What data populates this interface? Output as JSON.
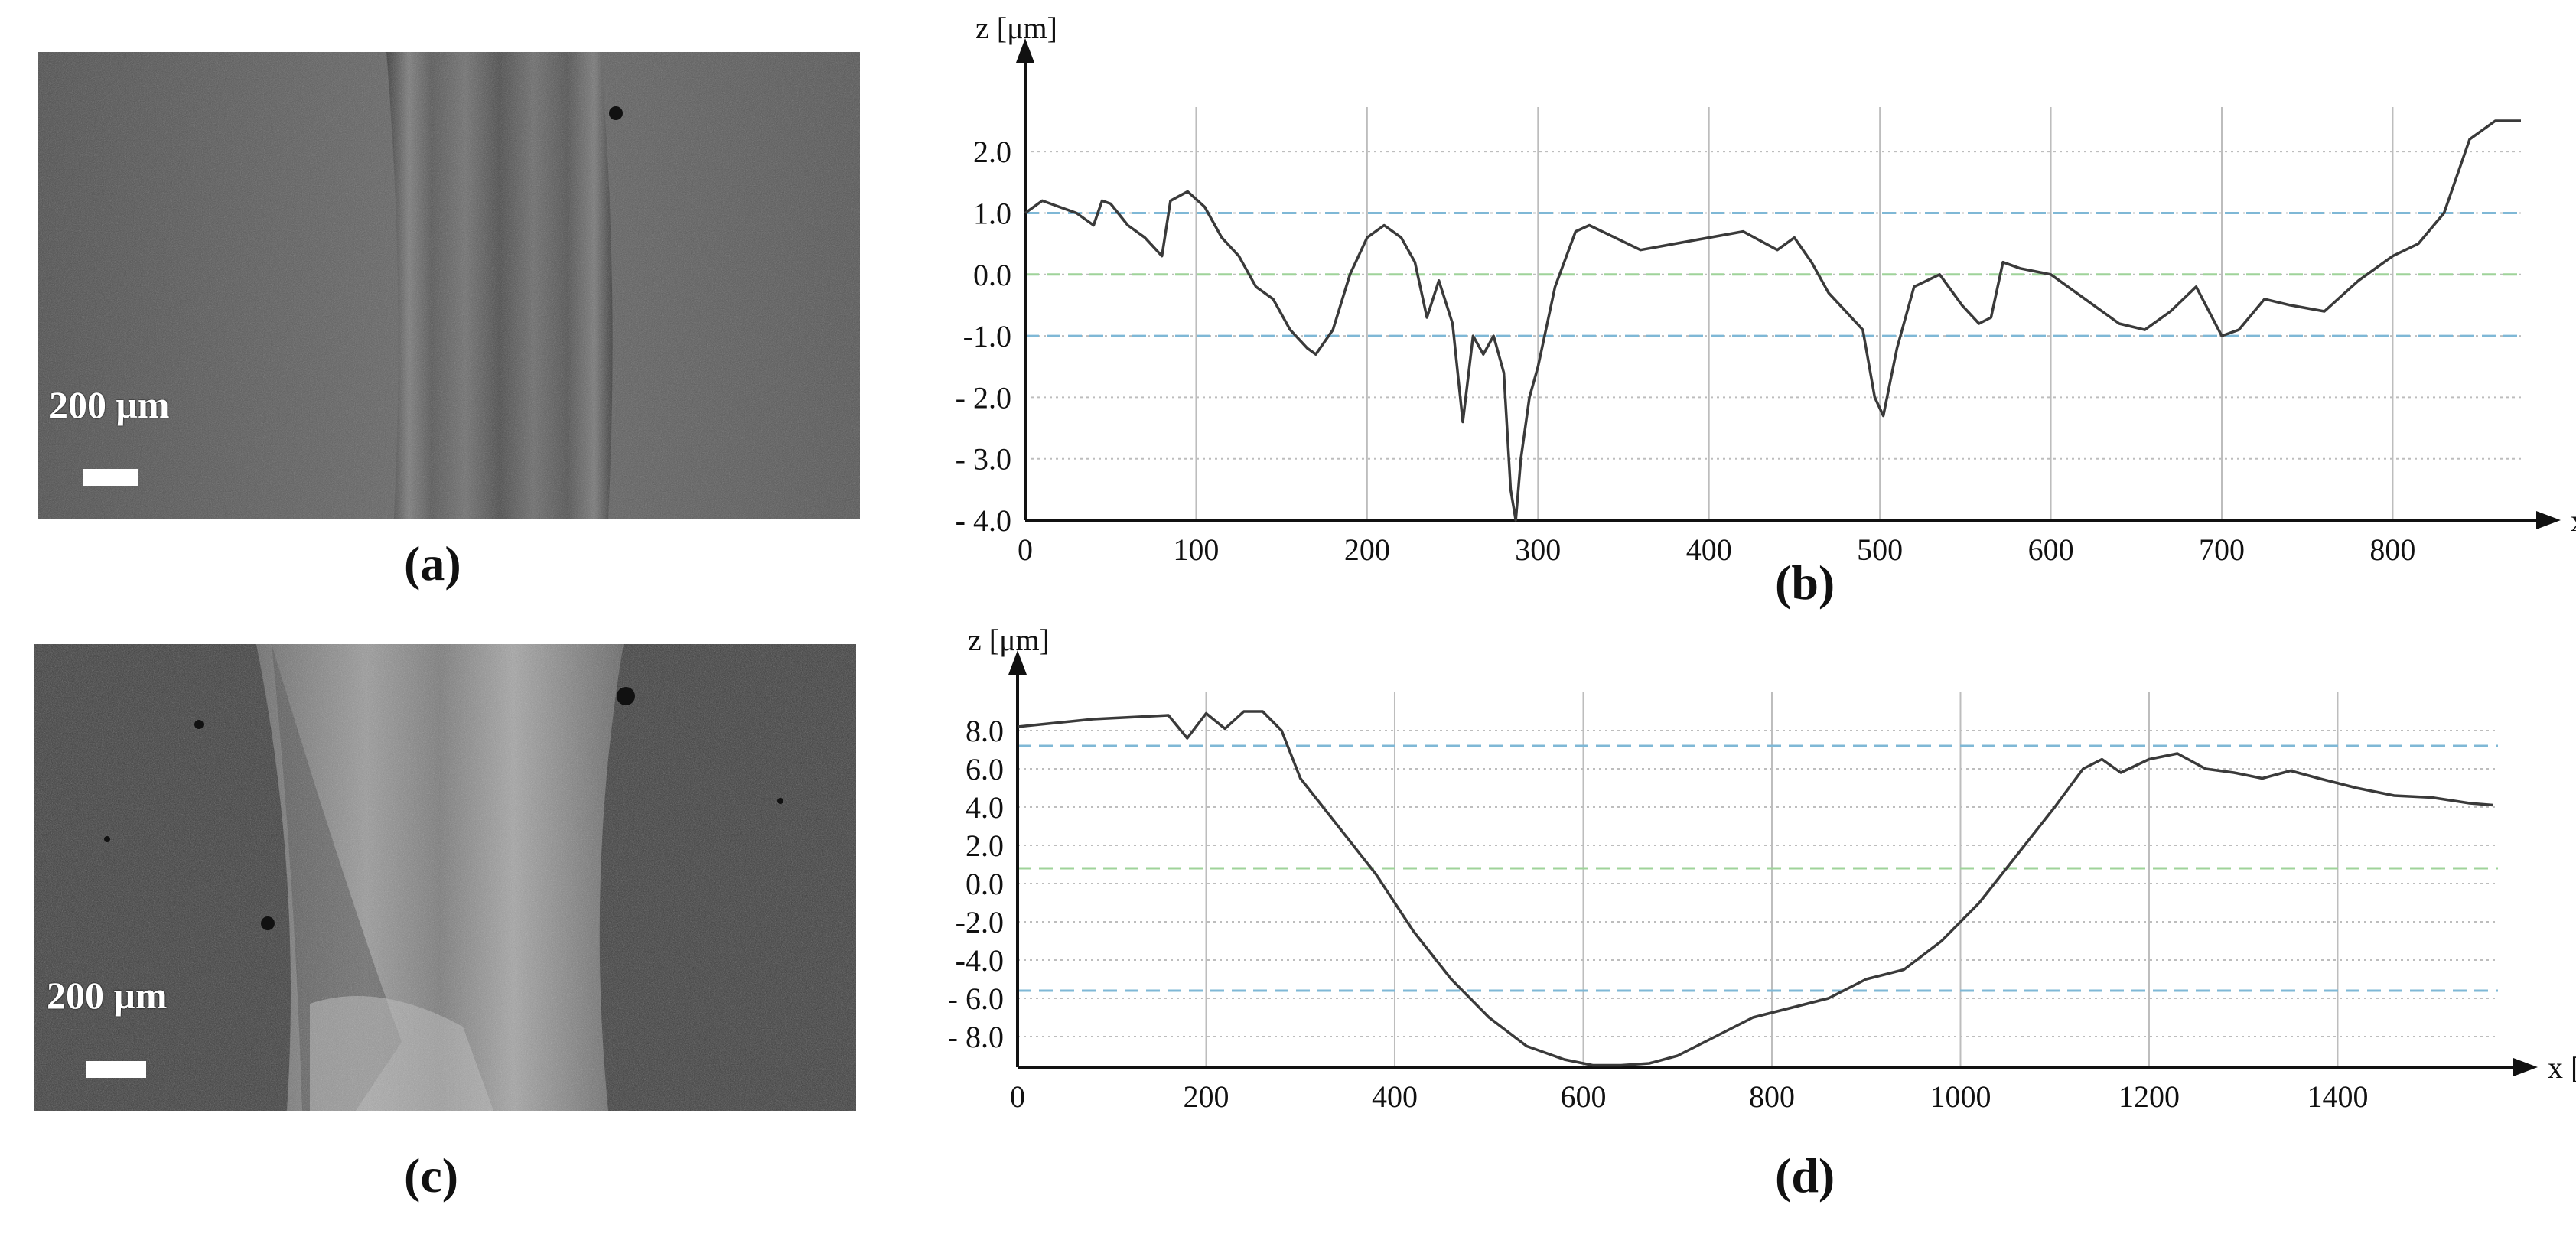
{
  "panels": {
    "a": {
      "label": "(a)",
      "scale_label": "200 μm"
    },
    "b": {
      "label": "(b)"
    },
    "c": {
      "label": "(c)",
      "scale_label": "200 μm"
    },
    "d": {
      "label": "(d)"
    }
  },
  "colors": {
    "profile": "#3a3a3a",
    "grid": "#bdbdbd",
    "limit_line": "#7fb8d6",
    "mean_line": "#9fd39a",
    "axis": "#111111"
  },
  "chart_data": [
    {
      "id": "b",
      "type": "line",
      "xlabel": "x [μm]",
      "ylabel": "z [μm]",
      "xlim": [
        0,
        875
      ],
      "ylim": [
        -4.0,
        2.6
      ],
      "xticks": [
        0,
        100,
        200,
        300,
        400,
        500,
        600,
        700,
        800
      ],
      "xtick_labels": [
        "0",
        "100",
        "200",
        "300",
        "400",
        "500",
        "600",
        "700",
        "800"
      ],
      "yticks": [
        2.0,
        1.0,
        0.0,
        -1.0,
        -2.0,
        -3.0,
        -4.0
      ],
      "ytick_labels": [
        "2.0",
        "1.0",
        "0.0",
        "-1.0",
        "- 2.0",
        "- 3.0",
        "- 4.0"
      ],
      "grid": true,
      "reference_lines": {
        "upper": 1.0,
        "mean": 0.0,
        "lower": -1.0
      },
      "x": [
        0,
        10,
        20,
        30,
        40,
        45,
        50,
        60,
        70,
        80,
        85,
        95,
        105,
        115,
        125,
        135,
        145,
        155,
        165,
        170,
        180,
        190,
        200,
        210,
        220,
        228,
        235,
        242,
        250,
        256,
        262,
        268,
        274,
        280,
        284,
        287,
        290,
        295,
        300,
        310,
        322,
        330,
        345,
        360,
        380,
        400,
        420,
        440,
        450,
        460,
        470,
        480,
        490,
        497,
        502,
        510,
        520,
        535,
        548,
        558,
        565,
        572,
        582,
        600,
        620,
        640,
        655,
        670,
        685,
        700,
        710,
        725,
        740,
        760,
        780,
        800,
        815,
        830,
        845,
        860,
        875
      ],
      "values": [
        1.0,
        1.2,
        1.1,
        1.0,
        0.8,
        1.2,
        1.15,
        0.8,
        0.6,
        0.3,
        1.2,
        1.35,
        1.1,
        0.6,
        0.3,
        -0.2,
        -0.4,
        -0.9,
        -1.2,
        -1.3,
        -0.9,
        0.0,
        0.6,
        0.8,
        0.6,
        0.2,
        -0.7,
        -0.1,
        -0.8,
        -2.4,
        -1.0,
        -1.3,
        -1.0,
        -1.6,
        -3.5,
        -4.0,
        -3.0,
        -2.0,
        -1.5,
        -0.2,
        0.7,
        0.8,
        0.6,
        0.4,
        0.5,
        0.6,
        0.7,
        0.4,
        0.6,
        0.2,
        -0.3,
        -0.6,
        -0.9,
        -2.0,
        -2.3,
        -1.2,
        -0.2,
        0.0,
        -0.5,
        -0.8,
        -0.7,
        0.2,
        0.1,
        0.0,
        -0.4,
        -0.8,
        -0.9,
        -0.6,
        -0.2,
        -1.0,
        -0.9,
        -0.4,
        -0.5,
        -0.6,
        -0.1,
        0.3,
        0.5,
        1.0,
        2.2,
        2.5,
        2.5
      ]
    },
    {
      "id": "d",
      "type": "line",
      "xlabel": "x [μm]",
      "ylabel": "z [μm]",
      "xlim": [
        0,
        1570
      ],
      "ylim": [
        -9.6,
        9.6
      ],
      "xticks": [
        0,
        200,
        400,
        600,
        800,
        1000,
        1200,
        1400
      ],
      "xtick_labels": [
        "0",
        "200",
        "400",
        "600",
        "800",
        "1000",
        "1200",
        "1400"
      ],
      "yticks": [
        8.0,
        6.0,
        4.0,
        2.0,
        0.0,
        -2.0,
        -4.0,
        -6.0,
        -8.0
      ],
      "ytick_labels": [
        "8.0",
        "6.0",
        "4.0",
        "2.0",
        "0.0",
        "-2.0",
        "-4.0",
        "- 6.0",
        "- 8.0"
      ],
      "grid": true,
      "reference_lines": {
        "upper": 7.2,
        "mean": 0.8,
        "lower": -5.6
      },
      "x": [
        0,
        40,
        80,
        120,
        160,
        180,
        200,
        220,
        240,
        260,
        280,
        300,
        340,
        380,
        420,
        460,
        500,
        540,
        580,
        610,
        640,
        670,
        700,
        740,
        780,
        820,
        860,
        900,
        940,
        980,
        1020,
        1060,
        1100,
        1130,
        1150,
        1170,
        1200,
        1230,
        1260,
        1290,
        1320,
        1350,
        1380,
        1420,
        1460,
        1500,
        1540,
        1565
      ],
      "values": [
        8.2,
        8.4,
        8.6,
        8.7,
        8.8,
        7.6,
        8.9,
        8.1,
        9.0,
        9.0,
        8.0,
        5.5,
        3.0,
        0.5,
        -2.5,
        -5.0,
        -7.0,
        -8.5,
        -9.2,
        -9.5,
        -9.5,
        -9.4,
        -9.0,
        -8.0,
        -7.0,
        -6.5,
        -6.0,
        -5.0,
        -4.5,
        -3.0,
        -1.0,
        1.5,
        4.0,
        6.0,
        6.5,
        5.8,
        6.5,
        6.8,
        6.0,
        5.8,
        5.5,
        5.9,
        5.5,
        5.0,
        4.6,
        4.5,
        4.2,
        4.1
      ]
    }
  ]
}
